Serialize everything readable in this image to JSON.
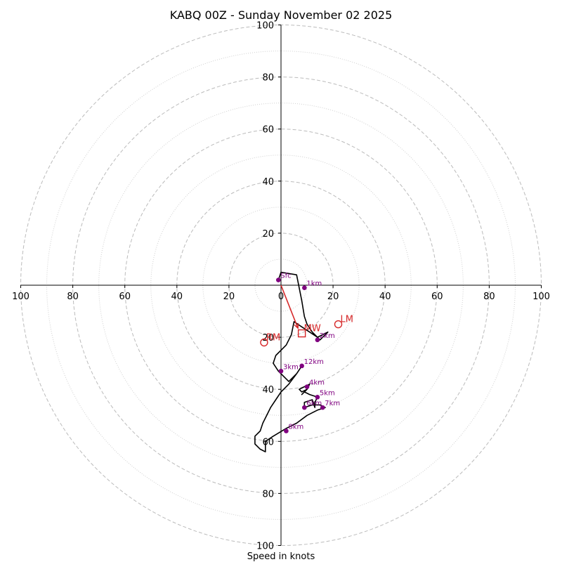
{
  "chart_data": {
    "type": "hodograph",
    "title": "KABQ 00Z - Sunday November 02 2025",
    "xlabel": "Speed in knots",
    "units": "knots",
    "range": [
      -100,
      100
    ],
    "ring_major": [
      20,
      40,
      60,
      80,
      100
    ],
    "ring_minor": [
      10,
      30,
      50,
      70,
      90
    ],
    "x_tick_labels": [
      "100",
      "80",
      "60",
      "40",
      "20",
      "0",
      "20",
      "40",
      "60",
      "80",
      "100"
    ],
    "y_tick_labels": [
      "100",
      "80",
      "60",
      "40",
      "20",
      "20",
      "40",
      "60",
      "80",
      "100"
    ],
    "trace": [
      [
        -1,
        2
      ],
      [
        0,
        5
      ],
      [
        6,
        4
      ],
      [
        8,
        -6
      ],
      [
        9,
        -12
      ],
      [
        10,
        -15
      ],
      [
        12,
        -18
      ],
      [
        15,
        -21
      ],
      [
        18,
        -18
      ],
      [
        14,
        -20
      ],
      [
        8,
        -16
      ],
      [
        5,
        -14
      ],
      [
        4,
        -19
      ],
      [
        2,
        -23
      ],
      [
        -2,
        -27
      ],
      [
        -3,
        -30
      ],
      [
        -1,
        -33
      ],
      [
        1,
        -35
      ],
      [
        3,
        -37
      ],
      [
        6,
        -34
      ],
      [
        8,
        -31
      ],
      [
        6,
        -34
      ],
      [
        3,
        -38
      ],
      [
        0,
        -41
      ],
      [
        -2,
        -44
      ],
      [
        -4,
        -47
      ],
      [
        -7,
        -53
      ],
      [
        -8,
        -56
      ],
      [
        -10,
        -58
      ],
      [
        -10,
        -61
      ],
      [
        -8,
        -63
      ],
      [
        -6,
        -64
      ],
      [
        -6,
        -60
      ],
      [
        -3,
        -58
      ],
      [
        2,
        -55
      ],
      [
        6,
        -53
      ],
      [
        10,
        -50
      ],
      [
        14,
        -48
      ],
      [
        17,
        -47
      ],
      [
        15,
        -46
      ],
      [
        12,
        -46
      ],
      [
        9,
        -47
      ],
      [
        9,
        -45
      ],
      [
        12,
        -44
      ],
      [
        13,
        -47
      ],
      [
        13,
        -45
      ],
      [
        14,
        -43
      ],
      [
        11,
        -42
      ],
      [
        9,
        -41
      ],
      [
        8,
        -42
      ],
      [
        10,
        -40
      ],
      [
        11,
        -38
      ],
      [
        9,
        -39
      ],
      [
        7,
        -40
      ],
      [
        8,
        -41
      ],
      [
        10,
        -40
      ]
    ],
    "height_markers": [
      {
        "label": "Sfc",
        "u": -1,
        "v": 2
      },
      {
        "label": "1km",
        "u": 9,
        "v": -1
      },
      {
        "label": "2km",
        "u": 14,
        "v": -21
      },
      {
        "label": "3km",
        "u": 0,
        "v": -33
      },
      {
        "label": "4km",
        "u": 10,
        "v": -39
      },
      {
        "label": "5km",
        "u": 14,
        "v": -43
      },
      {
        "label": "6km",
        "u": 9,
        "v": -47
      },
      {
        "label": "7km",
        "u": 16,
        "v": -47
      },
      {
        "label": "8km",
        "u": 2,
        "v": -56
      },
      {
        "label": "12km",
        "u": 8,
        "v": -31
      }
    ],
    "motion_markers": [
      {
        "label": "LM",
        "u": 22,
        "v": -15,
        "shape": "circle"
      },
      {
        "label": "RM",
        "u": -6.5,
        "v": -22,
        "shape": "circle"
      },
      {
        "label": "MW",
        "u": 8,
        "v": -18.5,
        "shape": "square"
      }
    ],
    "mean_wind_vector": {
      "u": 6.5,
      "v": -16.5
    },
    "colors": {
      "trace": "#000000",
      "height_marker": "#800080",
      "motion": "#d62728",
      "grid": "#bbbbbb"
    }
  }
}
